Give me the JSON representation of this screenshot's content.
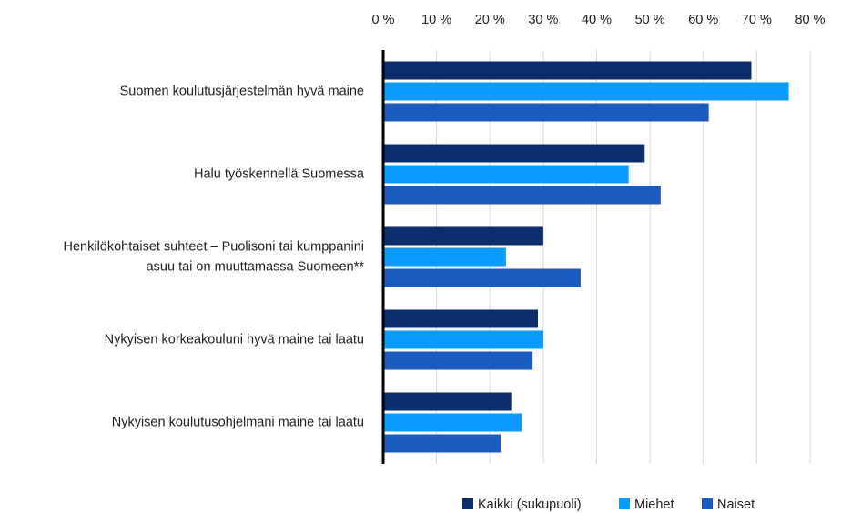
{
  "chart_data": {
    "type": "barh",
    "categories": [
      "Suomen koulutusjärjestelmän hyvä maine",
      "Halu työskennellä Suomessa",
      "Henkilökohtaiset suhteet – Puolisoni tai kumppanini\nasuu tai on muuttamassa Suomeen**",
      "Nykyisen korkeakouluni hyvä maine tai laatu",
      "Nykyisen koulutusohjelmani maine tai laatu"
    ],
    "series": [
      {
        "name": "Kaikki (sukupuoli)",
        "color": "#0b2d6b",
        "values": [
          69,
          49,
          30,
          29,
          24
        ]
      },
      {
        "name": "Miehet",
        "color": "#0a9bff",
        "values": [
          76,
          46,
          23,
          30,
          26
        ]
      },
      {
        "name": "Naiset",
        "color": "#1a5bbf",
        "values": [
          61,
          52,
          37,
          28,
          22
        ]
      }
    ],
    "xlim": [
      0,
      80
    ],
    "xticks": [
      {
        "value": 0,
        "label": "0 %"
      },
      {
        "value": 10,
        "label": "10 %"
      },
      {
        "value": 20,
        "label": "20 %"
      },
      {
        "value": 30,
        "label": "30 %"
      },
      {
        "value": 40,
        "label": "40 %"
      },
      {
        "value": 50,
        "label": "50 %"
      },
      {
        "value": 60,
        "label": "60 %"
      },
      {
        "value": 70,
        "label": "70 %"
      },
      {
        "value": 80,
        "label": "80 %"
      }
    ],
    "grid": true,
    "legend": "bottom"
  }
}
